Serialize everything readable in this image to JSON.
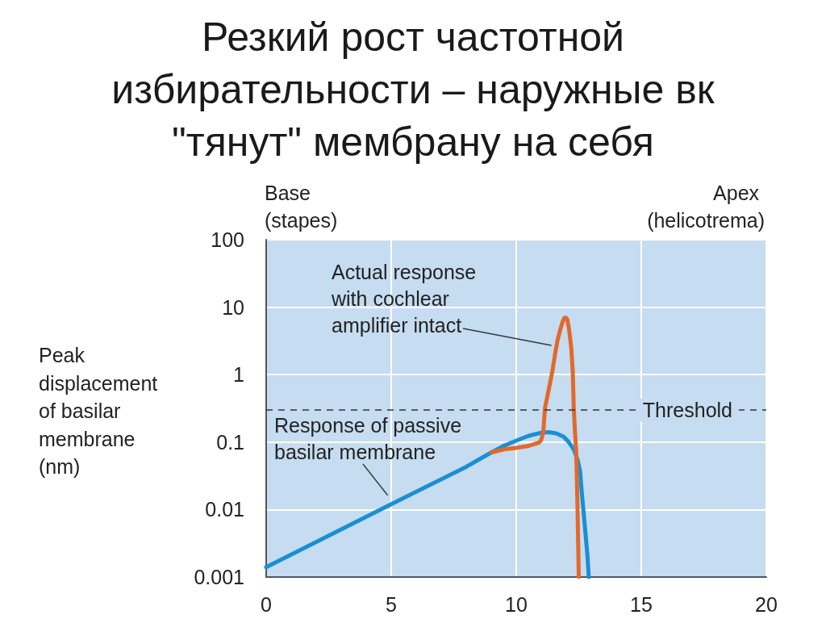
{
  "chart_data": {
    "type": "line",
    "title": "Резкий рост частотной избирательности – наружные вк \"тянут\" мембрану на себя",
    "ylabel": "Peak displacement of basilar membrane (nm)",
    "annotations": [
      "Base (stapes)",
      "Apex (helicotrema)"
    ],
    "xlim": [
      0,
      20
    ],
    "xticks": [
      0,
      5,
      10,
      15,
      20
    ],
    "ylim": [
      0.001,
      100
    ],
    "yticks": [
      0.001,
      0.01,
      0.1,
      1,
      10,
      100
    ],
    "log": "y",
    "grid": true,
    "legend": false,
    "marker": "none",
    "line_style": "solid",
    "ref_lines": [
      {
        "axis": "y",
        "value": 0.3,
        "label": "Threshold",
        "color": "#333333",
        "line_style": "dashed"
      }
    ],
    "series": [
      {
        "name": "Response of passive basilar membrane",
        "color": "#1b8fd2",
        "x": [
          0,
          5,
          8,
          8.5,
          9,
          9.5,
          10,
          10.5,
          11,
          11.3,
          11.6,
          11.9,
          12.1,
          12.3,
          12.45,
          12.55,
          12.62,
          12.7,
          12.78,
          12.85,
          12.9
        ],
        "values": [
          0.0014,
          0.012,
          0.043,
          0.055,
          0.07,
          0.088,
          0.105,
          0.124,
          0.138,
          0.14,
          0.135,
          0.12,
          0.1,
          0.078,
          0.055,
          0.038,
          0.018,
          0.0085,
          0.004,
          0.002,
          0.001
        ]
      },
      {
        "name": "Actual response with cochlear amplifier intact",
        "color": "#e2692b",
        "x": [
          9,
          9.5,
          10,
          10.5,
          10.9,
          11.0,
          11.08,
          11.15,
          11.3,
          11.45,
          11.55,
          11.65,
          11.75,
          11.85,
          11.92,
          11.98,
          12.04,
          12.1,
          12.15,
          12.2,
          12.26,
          12.3,
          12.35,
          12.4,
          12.45,
          12.5
        ],
        "values": [
          0.07,
          0.078,
          0.082,
          0.088,
          0.098,
          0.108,
          0.14,
          0.32,
          0.6,
          1.15,
          2,
          3.2,
          4.5,
          6,
          6.9,
          7,
          6.6,
          5,
          3.6,
          2.5,
          1.1,
          0.32,
          0.14,
          0.07,
          0.011,
          0.001
        ]
      }
    ]
  }
}
